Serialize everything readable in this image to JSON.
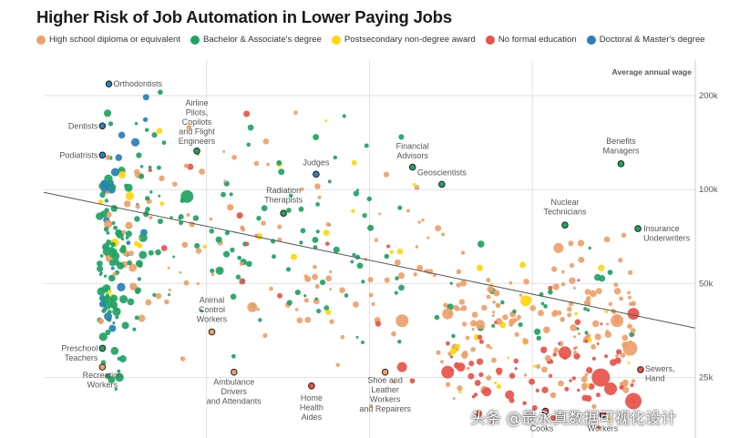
{
  "chart_data": {
    "type": "scatter",
    "title": "Higher Risk of Job Automation in Lower Paying Jobs",
    "ylabel": "Average annual wage",
    "xlabel": "",
    "y_scale": "log",
    "xlim": [
      0,
      1
    ],
    "ylim": [
      16000,
      260000
    ],
    "y_ticks": [
      25000,
      50000,
      100000,
      200000
    ],
    "y_tick_labels": [
      "25k",
      "50k",
      "100k",
      "200k"
    ],
    "x_gridlines": [
      0.25,
      0.5,
      0.75
    ],
    "trend_line": {
      "x": [
        0,
        1
      ],
      "y": [
        98000,
        36000
      ]
    },
    "legend": [
      {
        "name": "High school diploma or equivalent",
        "color": "#EDA06A"
      },
      {
        "name": "Bachelor & Associate's degree",
        "color": "#1FA463"
      },
      {
        "name": "Postsecondary non-degree award",
        "color": "#FFD60A"
      },
      {
        "name": "No formal education",
        "color": "#E8534A"
      },
      {
        "name": "Doctoral & Master's degree",
        "color": "#2980B9"
      }
    ],
    "labeled_points": [
      {
        "label": "Orthodontists",
        "x": 0.1,
        "y": 218000,
        "education": "Doctoral & Master's degree"
      },
      {
        "label": "Dentists",
        "x": 0.09,
        "y": 160000,
        "education": "Doctoral & Master's degree"
      },
      {
        "label": "Podiatrists",
        "x": 0.09,
        "y": 129000,
        "education": "Doctoral & Master's degree"
      },
      {
        "label": "Airline Pilots, Copilots and Flight Engineers",
        "x": 0.235,
        "y": 133000,
        "education": "Bachelor & Associate's degree"
      },
      {
        "label": "Judges",
        "x": 0.418,
        "y": 112000,
        "education": "Doctoral & Master's degree"
      },
      {
        "label": "Radiation Therapists",
        "x": 0.368,
        "y": 84000,
        "education": "Bachelor & Associate's degree"
      },
      {
        "label": "Financial Advisors",
        "x": 0.566,
        "y": 118000,
        "education": "Bachelor & Associate's degree"
      },
      {
        "label": "Geoscientists",
        "x": 0.611,
        "y": 104000,
        "education": "Bachelor & Associate's degree"
      },
      {
        "label": "Benefits Managers",
        "x": 0.886,
        "y": 121000,
        "education": "Bachelor & Associate's degree"
      },
      {
        "label": "Nuclear Technicians",
        "x": 0.8,
        "y": 77000,
        "education": "Bachelor & Associate's degree"
      },
      {
        "label": "Insurance Underwriters",
        "x": 0.912,
        "y": 75000,
        "education": "Bachelor & Associate's degree"
      },
      {
        "label": "Animal Control Workers",
        "x": 0.258,
        "y": 35000,
        "education": "High school diploma or equivalent"
      },
      {
        "label": "Preschool Teachers",
        "x": 0.09,
        "y": 31000,
        "education": "Bachelor & Associate's degree"
      },
      {
        "label": "Recreation Workers",
        "x": 0.09,
        "y": 27000,
        "education": "High school diploma or equivalent"
      },
      {
        "label": "Ambulance Drivers and Attendants",
        "x": 0.292,
        "y": 26000,
        "education": "High school diploma or equivalent"
      },
      {
        "label": "Home Health Aides",
        "x": 0.411,
        "y": 23500,
        "education": "No formal education"
      },
      {
        "label": "Shoe and Leather Workers and Repairers",
        "x": 0.524,
        "y": 26000,
        "education": "High school diploma or equivalent"
      },
      {
        "label": "Sewers, Hand",
        "x": 0.916,
        "y": 26500,
        "education": "No formal education"
      },
      {
        "label": "Cooks",
        "x": 0.77,
        "y": 19500,
        "education": "No formal education"
      },
      {
        "label": "Workers",
        "x": 0.858,
        "y": 19000,
        "education": "No formal education"
      }
    ]
  },
  "watermark": "头条 @最永真数据可视化设计"
}
